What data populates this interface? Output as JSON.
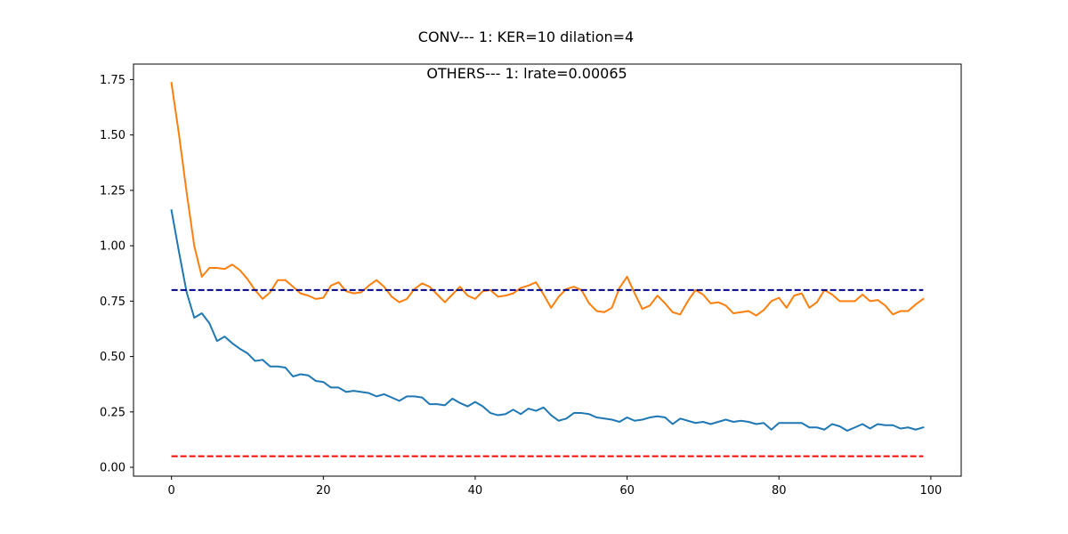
{
  "chart_data": {
    "type": "line",
    "title": "CONV--- 1: KER=10   dilation=4",
    "subtitle": "OTHERS--- 1: lrate=0.00065",
    "xlabel": "",
    "ylabel": "",
    "xlim": [
      -5,
      104
    ],
    "ylim": [
      -0.04,
      1.82
    ],
    "xticks": [
      0,
      20,
      40,
      60,
      80,
      100
    ],
    "yticks": [
      0.0,
      0.25,
      0.5,
      0.75,
      1.0,
      1.25,
      1.5,
      1.75
    ],
    "xtick_labels": [
      "0",
      "20",
      "40",
      "60",
      "80",
      "100"
    ],
    "ytick_labels": [
      "0.00",
      "0.25",
      "0.50",
      "0.75",
      "1.00",
      "1.25",
      "1.50",
      "1.75"
    ],
    "grid": false,
    "series": [
      {
        "color": "#1f77b4",
        "style": "solid",
        "x_start": 0,
        "values": [
          1.16,
          0.97,
          0.79,
          0.675,
          0.695,
          0.65,
          0.57,
          0.59,
          0.56,
          0.535,
          0.515,
          0.48,
          0.485,
          0.455,
          0.455,
          0.45,
          0.41,
          0.42,
          0.415,
          0.39,
          0.385,
          0.36,
          0.36,
          0.34,
          0.345,
          0.34,
          0.335,
          0.32,
          0.33,
          0.315,
          0.3,
          0.32,
          0.32,
          0.315,
          0.285,
          0.285,
          0.28,
          0.31,
          0.29,
          0.275,
          0.295,
          0.275,
          0.245,
          0.235,
          0.24,
          0.26,
          0.24,
          0.265,
          0.255,
          0.27,
          0.235,
          0.21,
          0.22,
          0.245,
          0.245,
          0.24,
          0.225,
          0.22,
          0.215,
          0.205,
          0.225,
          0.21,
          0.215,
          0.225,
          0.23,
          0.225,
          0.195,
          0.22,
          0.21,
          0.2,
          0.205,
          0.195,
          0.205,
          0.215,
          0.205,
          0.21,
          0.205,
          0.195,
          0.2,
          0.17,
          0.2,
          0.2,
          0.2,
          0.2,
          0.18,
          0.18,
          0.17,
          0.195,
          0.185,
          0.165,
          0.18,
          0.195,
          0.175,
          0.195,
          0.19,
          0.19,
          0.175,
          0.18,
          0.17,
          0.18
        ]
      },
      {
        "color": "#ff7f0e",
        "style": "solid",
        "x_start": 0,
        "values": [
          1.735,
          1.5,
          1.24,
          1.0,
          0.86,
          0.9,
          0.9,
          0.895,
          0.915,
          0.89,
          0.85,
          0.8,
          0.76,
          0.79,
          0.845,
          0.845,
          0.815,
          0.785,
          0.775,
          0.76,
          0.765,
          0.82,
          0.835,
          0.795,
          0.785,
          0.79,
          0.82,
          0.845,
          0.815,
          0.77,
          0.745,
          0.76,
          0.805,
          0.83,
          0.815,
          0.78,
          0.745,
          0.78,
          0.815,
          0.775,
          0.76,
          0.795,
          0.8,
          0.77,
          0.775,
          0.785,
          0.81,
          0.82,
          0.835,
          0.78,
          0.72,
          0.77,
          0.805,
          0.815,
          0.8,
          0.74,
          0.705,
          0.7,
          0.72,
          0.81,
          0.86,
          0.785,
          0.715,
          0.73,
          0.775,
          0.74,
          0.7,
          0.69,
          0.75,
          0.8,
          0.78,
          0.74,
          0.745,
          0.73,
          0.695,
          0.7,
          0.705,
          0.685,
          0.71,
          0.75,
          0.765,
          0.72,
          0.775,
          0.785,
          0.72,
          0.745,
          0.8,
          0.78,
          0.75,
          0.75,
          0.75,
          0.78,
          0.75,
          0.755,
          0.73,
          0.69,
          0.705,
          0.705,
          0.735,
          0.76
        ]
      },
      {
        "color": "#00008b",
        "style": "dashed",
        "x": [
          0,
          99
        ],
        "values": [
          0.8,
          0.8
        ]
      },
      {
        "color": "#ff0000",
        "style": "dashed",
        "x": [
          0,
          99
        ],
        "values": [
          0.05,
          0.05
        ]
      }
    ]
  }
}
